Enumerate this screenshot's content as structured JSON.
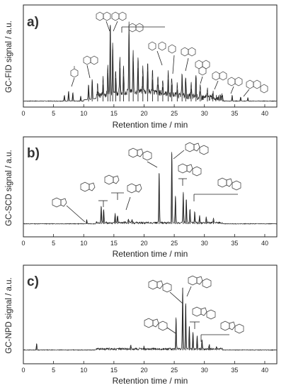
{
  "chart_data": [
    {
      "type": "line",
      "panel": "a)",
      "xlabel": "Retention time / min",
      "ylabel": "GC-FID signal / a.u.",
      "xlim": [
        0,
        42
      ],
      "xticks": [
        0,
        5,
        10,
        15,
        20,
        25,
        30,
        35,
        40
      ],
      "peaks": [
        {
          "x": 6.8,
          "y": 0.07
        },
        {
          "x": 7.5,
          "y": 0.12
        },
        {
          "x": 8.2,
          "y": 0.1
        },
        {
          "x": 9.5,
          "y": 0.06
        },
        {
          "x": 10.8,
          "y": 0.18
        },
        {
          "x": 11.4,
          "y": 0.24
        },
        {
          "x": 12.3,
          "y": 0.12
        },
        {
          "x": 13.2,
          "y": 0.2
        },
        {
          "x": 14.0,
          "y": 0.34
        },
        {
          "x": 14.4,
          "y": 0.9
        },
        {
          "x": 14.8,
          "y": 0.62
        },
        {
          "x": 15.3,
          "y": 0.28
        },
        {
          "x": 16.0,
          "y": 0.4
        },
        {
          "x": 16.6,
          "y": 0.3
        },
        {
          "x": 17.5,
          "y": 0.8
        },
        {
          "x": 18.2,
          "y": 0.48
        },
        {
          "x": 19.0,
          "y": 0.4
        },
        {
          "x": 19.8,
          "y": 0.3
        },
        {
          "x": 20.6,
          "y": 0.36
        },
        {
          "x": 21.4,
          "y": 0.26
        },
        {
          "x": 22.3,
          "y": 0.2
        },
        {
          "x": 23.1,
          "y": 0.17
        },
        {
          "x": 24.0,
          "y": 0.26
        },
        {
          "x": 24.6,
          "y": 0.2
        },
        {
          "x": 25.5,
          "y": 0.14
        },
        {
          "x": 26.3,
          "y": 0.3
        },
        {
          "x": 26.9,
          "y": 0.24
        },
        {
          "x": 27.8,
          "y": 0.15
        },
        {
          "x": 28.6,
          "y": 0.28
        },
        {
          "x": 29.3,
          "y": 0.12
        },
        {
          "x": 30.5,
          "y": 0.1
        },
        {
          "x": 31.4,
          "y": 0.08
        },
        {
          "x": 33.0,
          "y": 0.06
        },
        {
          "x": 34.6,
          "y": 0.07
        },
        {
          "x": 36.0,
          "y": 0.05
        },
        {
          "x": 37.2,
          "y": 0.04
        }
      ]
    },
    {
      "type": "line",
      "panel": "b)",
      "xlabel": "Retention time / min",
      "ylabel": "GC-SCD signal / a.u.",
      "xlim": [
        0,
        42
      ],
      "xticks": [
        0,
        5,
        10,
        15,
        20,
        25,
        30,
        35,
        40
      ],
      "peaks": [
        {
          "x": 10.5,
          "y": 0.05
        },
        {
          "x": 12.9,
          "y": 0.22
        },
        {
          "x": 13.3,
          "y": 0.18
        },
        {
          "x": 15.2,
          "y": 0.12
        },
        {
          "x": 15.6,
          "y": 0.1
        },
        {
          "x": 17.4,
          "y": 0.06
        },
        {
          "x": 18.0,
          "y": 0.05
        },
        {
          "x": 22.5,
          "y": 0.66
        },
        {
          "x": 24.6,
          "y": 0.92
        },
        {
          "x": 25.2,
          "y": 0.35
        },
        {
          "x": 26.5,
          "y": 0.4
        },
        {
          "x": 27.0,
          "y": 0.32
        },
        {
          "x": 27.6,
          "y": 0.18
        },
        {
          "x": 28.4,
          "y": 0.15
        },
        {
          "x": 29.2,
          "y": 0.1
        },
        {
          "x": 30.3,
          "y": 0.07
        },
        {
          "x": 31.5,
          "y": 0.05
        }
      ]
    },
    {
      "type": "line",
      "panel": "c)",
      "xlabel": "Retention time / min",
      "ylabel": "GC-NPD signal / a.u.",
      "xlim": [
        0,
        42
      ],
      "xticks": [
        0,
        5,
        10,
        15,
        20,
        25,
        30,
        35,
        40
      ],
      "peaks": [
        {
          "x": 2.2,
          "y": 0.08
        },
        {
          "x": 17.8,
          "y": 0.05
        },
        {
          "x": 20.0,
          "y": 0.03
        },
        {
          "x": 25.3,
          "y": 0.4
        },
        {
          "x": 26.4,
          "y": 0.8
        },
        {
          "x": 26.9,
          "y": 0.6
        },
        {
          "x": 27.5,
          "y": 0.3
        },
        {
          "x": 28.1,
          "y": 0.22
        },
        {
          "x": 28.8,
          "y": 0.18
        },
        {
          "x": 29.6,
          "y": 0.12
        },
        {
          "x": 30.8,
          "y": 0.06
        },
        {
          "x": 32.0,
          "y": 0.04
        }
      ]
    }
  ]
}
